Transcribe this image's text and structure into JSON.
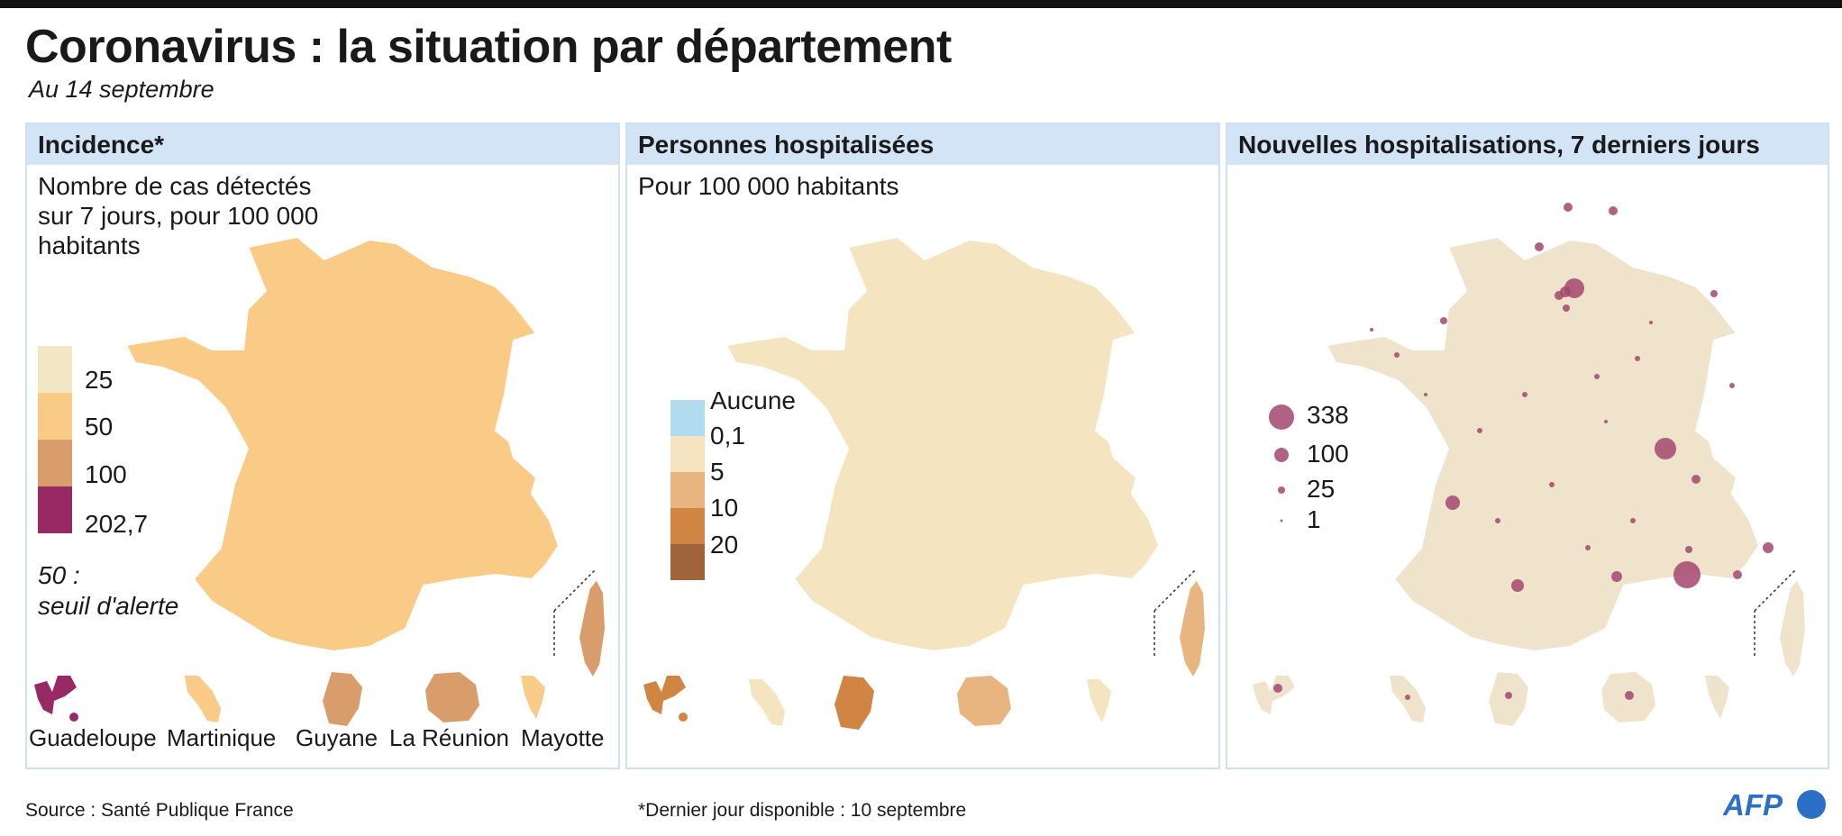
{
  "header": {
    "title": "Coronavirus : la situation par département",
    "subtitle": "Au 14 septembre"
  },
  "colors": {
    "panel_header_bg": "#d2e4f6",
    "panel_border": "#cfe0f1",
    "incidence_scale": [
      "#f3e7c6",
      "#f9cb87",
      "#d99d6b",
      "#972a64"
    ],
    "hospital_scale": [
      "#b1dcf0",
      "#f4e4c0",
      "#e8b581",
      "#d08642",
      "#a0643c"
    ],
    "map_base": "#efe3cc",
    "bubble_color": "#a3466f"
  },
  "panels": [
    {
      "id": "incidence",
      "header": "Incidence*",
      "description": "Nombre de cas détectés\nsur 7 jours, pour 100 000\nhabitants",
      "legend": [
        "25",
        "50",
        "100",
        "202,7"
      ],
      "note": "50 :\nseuil d'alerte",
      "territories": [
        "Guadeloupe",
        "Martinique",
        "Guyane",
        "La Réunion",
        "Mayotte"
      ]
    },
    {
      "id": "hospitalisees",
      "header": "Personnes hospitalisées",
      "description": "Pour 100 000 habitants",
      "legend": [
        "Aucune",
        "0,1",
        "5",
        "10",
        "20"
      ]
    },
    {
      "id": "nouvelles",
      "header": "Nouvelles hospitalisations, 7 derniers jours",
      "legend": [
        "338",
        "100",
        "25",
        "1"
      ]
    }
  ],
  "footer": {
    "source": "Source : Santé Publique France",
    "footnote": "*Dernier jour disponible : 10 septembre",
    "logo": "AFP"
  }
}
